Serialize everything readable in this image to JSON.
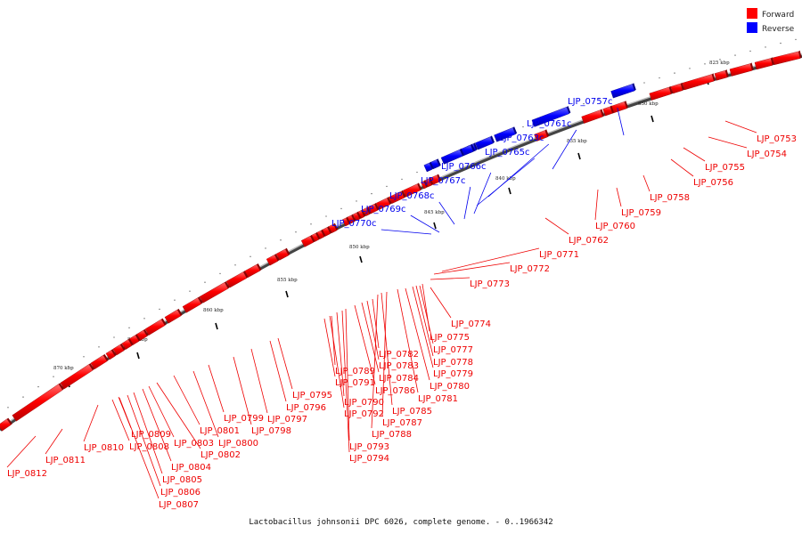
{
  "legend": {
    "forward": {
      "label": "Forward",
      "color": "#ff0000"
    },
    "reverse": {
      "label": "Reverse",
      "color": "#0000ff"
    }
  },
  "caption": "Lactobacillus johnsonii DPC 6026, complete genome. - 0..1966342",
  "ticks": [
    "825 kbp",
    "830 kbp",
    "835 kbp",
    "840 kbp",
    "845 kbp",
    "850 kbp",
    "855 kbp",
    "860 kbp",
    "865 kbp",
    "870 kbp"
  ],
  "genes": [
    {
      "id": "LJP_0753",
      "strand": "forward"
    },
    {
      "id": "LJP_0754",
      "strand": "forward"
    },
    {
      "id": "LJP_0755",
      "strand": "forward"
    },
    {
      "id": "LJP_0756",
      "strand": "forward"
    },
    {
      "id": "LJP_0757c",
      "strand": "reverse"
    },
    {
      "id": "LJP_0758",
      "strand": "forward"
    },
    {
      "id": "LJP_0759",
      "strand": "forward"
    },
    {
      "id": "LJP_0760",
      "strand": "forward"
    },
    {
      "id": "LJP_0761c",
      "strand": "reverse"
    },
    {
      "id": "LJP_0762",
      "strand": "forward"
    },
    {
      "id": "LJP_0763c",
      "strand": "reverse"
    },
    {
      "id": "LJP_0765c",
      "strand": "reverse"
    },
    {
      "id": "LJP_0766c",
      "strand": "reverse"
    },
    {
      "id": "LJP_0767c",
      "strand": "reverse"
    },
    {
      "id": "LJP_0768c",
      "strand": "reverse"
    },
    {
      "id": "LJP_0769c",
      "strand": "reverse"
    },
    {
      "id": "LJP_0770c",
      "strand": "reverse"
    },
    {
      "id": "LJP_0771",
      "strand": "forward"
    },
    {
      "id": "LJP_0772",
      "strand": "forward"
    },
    {
      "id": "LJP_0773",
      "strand": "forward"
    },
    {
      "id": "LJP_0774",
      "strand": "forward"
    },
    {
      "id": "LJP_0775",
      "strand": "forward"
    },
    {
      "id": "LJP_0777",
      "strand": "forward"
    },
    {
      "id": "LJP_0778",
      "strand": "forward"
    },
    {
      "id": "LJP_0779",
      "strand": "forward"
    },
    {
      "id": "LJP_0780",
      "strand": "forward"
    },
    {
      "id": "LJP_0781",
      "strand": "forward"
    },
    {
      "id": "LJP_0782",
      "strand": "forward"
    },
    {
      "id": "LJP_0783",
      "strand": "forward"
    },
    {
      "id": "LJP_0784",
      "strand": "forward"
    },
    {
      "id": "LJP_0785",
      "strand": "forward"
    },
    {
      "id": "LJP_0786",
      "strand": "forward"
    },
    {
      "id": "LJP_0787",
      "strand": "forward"
    },
    {
      "id": "LJP_0788",
      "strand": "forward"
    },
    {
      "id": "LJP_0789",
      "strand": "forward"
    },
    {
      "id": "LJP_0790",
      "strand": "forward"
    },
    {
      "id": "LJP_0791",
      "strand": "forward"
    },
    {
      "id": "LJP_0792",
      "strand": "forward"
    },
    {
      "id": "LJP_0793",
      "strand": "forward"
    },
    {
      "id": "LJP_0794",
      "strand": "forward"
    },
    {
      "id": "LJP_0795",
      "strand": "forward"
    },
    {
      "id": "LJP_0796",
      "strand": "forward"
    },
    {
      "id": "LJP_0797",
      "strand": "forward"
    },
    {
      "id": "LJP_0798",
      "strand": "forward"
    },
    {
      "id": "LJP_0799",
      "strand": "forward"
    },
    {
      "id": "LJP_0800",
      "strand": "forward"
    },
    {
      "id": "LJP_0801",
      "strand": "forward"
    },
    {
      "id": "LJP_0802",
      "strand": "forward"
    },
    {
      "id": "LJP_0803",
      "strand": "forward"
    },
    {
      "id": "LJP_0804",
      "strand": "forward"
    },
    {
      "id": "LJP_0805",
      "strand": "forward"
    },
    {
      "id": "LJP_0806",
      "strand": "forward"
    },
    {
      "id": "LJP_0807",
      "strand": "forward"
    },
    {
      "id": "LJP_0808",
      "strand": "forward"
    },
    {
      "id": "LJP_0809",
      "strand": "forward"
    },
    {
      "id": "LJP_0810",
      "strand": "forward"
    },
    {
      "id": "LJP_0811",
      "strand": "forward"
    },
    {
      "id": "LJP_0812",
      "strand": "forward"
    }
  ]
}
